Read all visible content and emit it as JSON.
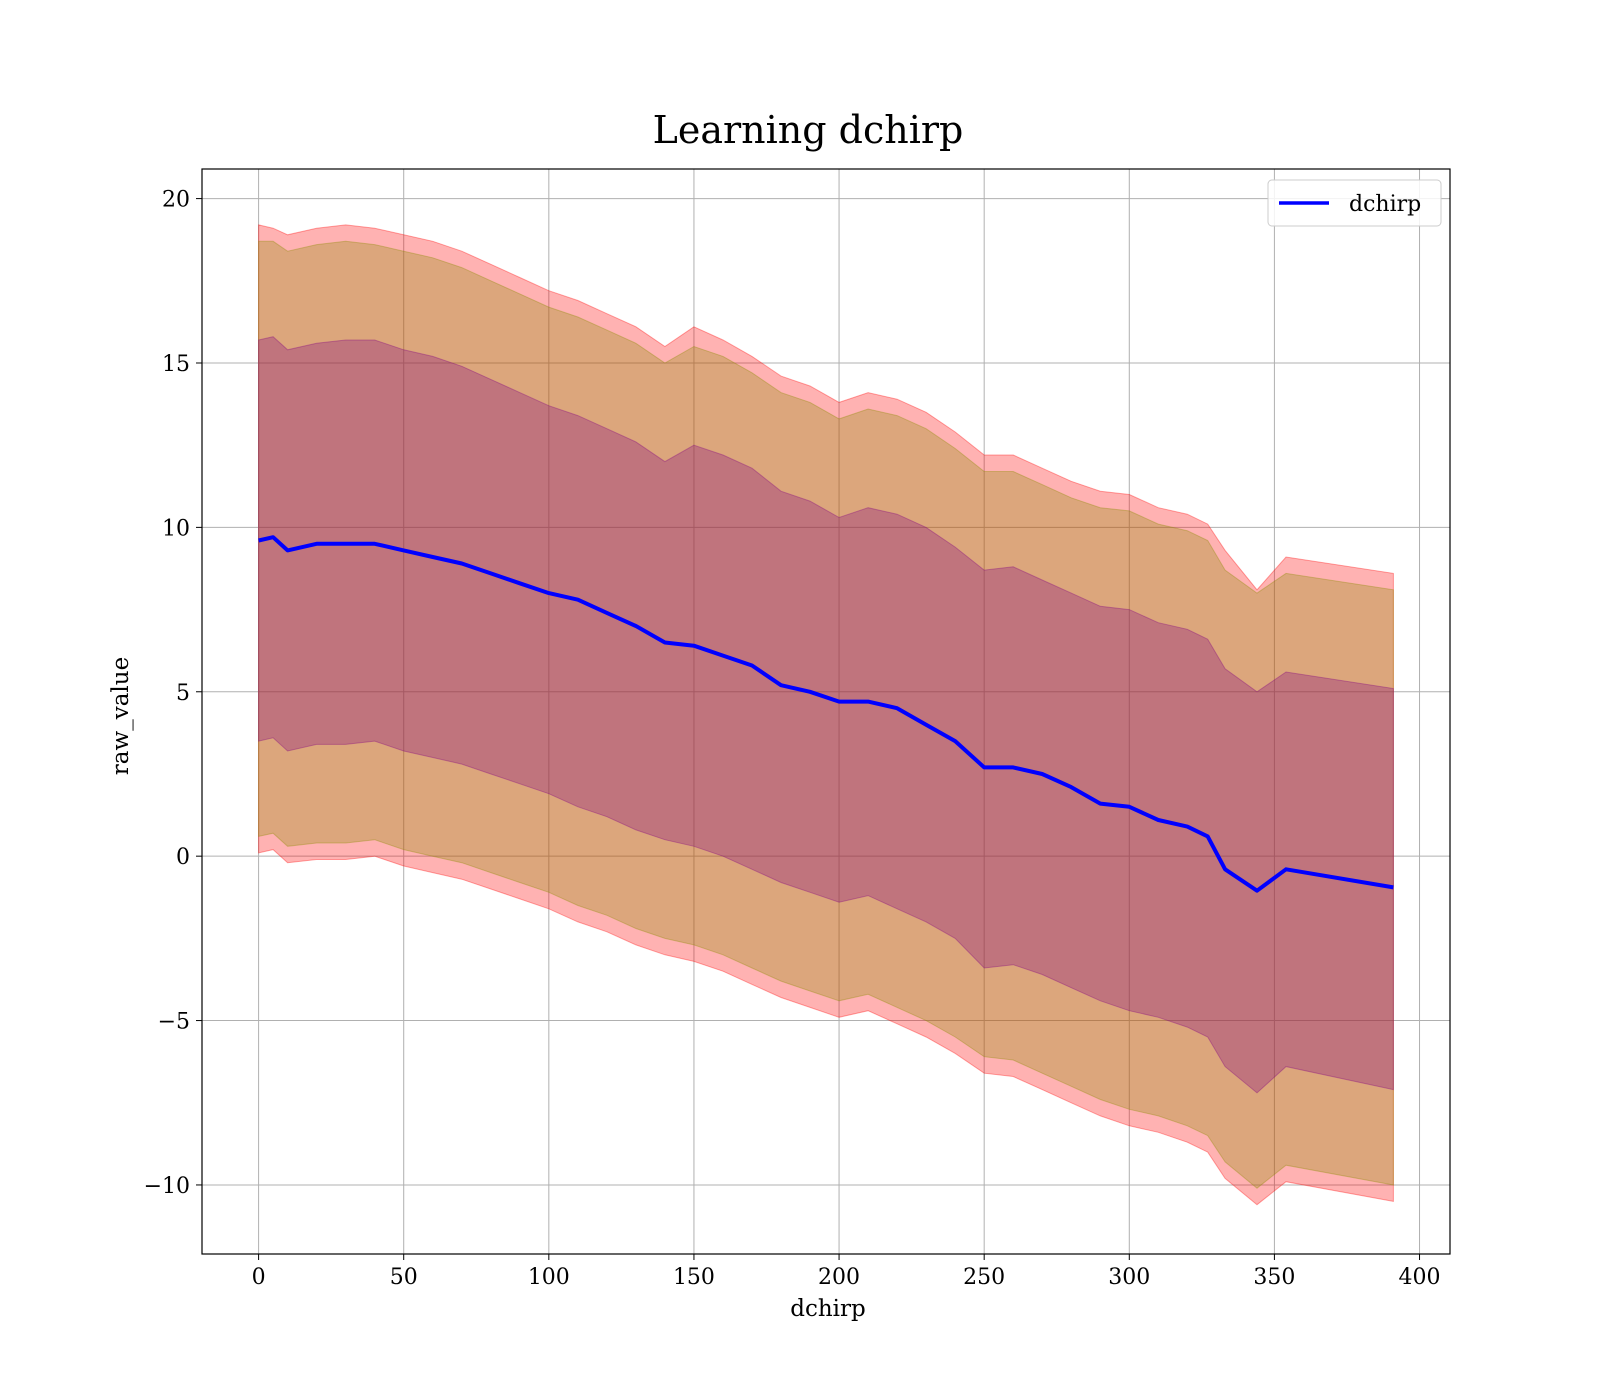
{
  "chart_data": {
    "type": "line",
    "title": "Learning dchirp",
    "xlabel": "dchirp",
    "ylabel": "raw_value",
    "xlim": [
      -19.5,
      410.5
    ],
    "ylim": [
      -12.1,
      20.9
    ],
    "x_ticks": [
      0,
      50,
      100,
      150,
      200,
      250,
      300,
      350,
      400
    ],
    "y_ticks": [
      -10,
      -5,
      0,
      5,
      10,
      15,
      20
    ],
    "x_tick_labels": [
      "0",
      "50",
      "100",
      "150",
      "200",
      "250",
      "300",
      "350",
      "400"
    ],
    "y_tick_labels": [
      "−10",
      "−5",
      "0",
      "5",
      "10",
      "15",
      "20"
    ],
    "grid": true,
    "legend": {
      "position": "top-right",
      "entries": [
        "dchirp"
      ]
    },
    "series": [
      {
        "name": "dchirp",
        "color": "#0000ff",
        "x": [
          0,
          5,
          10,
          20,
          30,
          40,
          50,
          60,
          70,
          80,
          90,
          100,
          110,
          120,
          130,
          140,
          150,
          160,
          170,
          180,
          190,
          200,
          210,
          220,
          230,
          240,
          250,
          260,
          270,
          280,
          290,
          300,
          310,
          320,
          327,
          333,
          344,
          354,
          391
        ],
        "y": [
          9.6,
          9.7,
          9.3,
          9.5,
          9.5,
          9.5,
          9.3,
          9.1,
          8.9,
          8.6,
          8.3,
          8.0,
          7.8,
          7.4,
          7.0,
          6.5,
          6.4,
          6.1,
          5.8,
          5.2,
          5.0,
          4.7,
          4.7,
          4.5,
          4.0,
          3.5,
          2.7,
          2.7,
          2.5,
          2.1,
          1.6,
          1.5,
          1.1,
          0.9,
          0.6,
          -0.4,
          -1.05,
          -0.4,
          -0.95
        ]
      }
    ],
    "bands": [
      {
        "color": "#ff0000",
        "opacity": 0.3,
        "upper": [
          19.2,
          19.1,
          18.9,
          19.1,
          19.2,
          19.1,
          18.9,
          18.7,
          18.4,
          18.0,
          17.6,
          17.2,
          16.9,
          16.5,
          16.1,
          15.5,
          16.1,
          15.7,
          15.2,
          14.6,
          14.3,
          13.8,
          14.1,
          13.9,
          13.5,
          12.9,
          12.2,
          12.2,
          11.8,
          11.4,
          11.1,
          11.0,
          10.6,
          10.4,
          10.1,
          9.3,
          8.1,
          9.1,
          8.6
        ],
        "lower": [
          0.1,
          0.2,
          -0.2,
          -0.1,
          -0.1,
          0.0,
          -0.3,
          -0.5,
          -0.7,
          -1.0,
          -1.3,
          -1.6,
          -2.0,
          -2.3,
          -2.7,
          -3.0,
          -3.2,
          -3.5,
          -3.9,
          -4.3,
          -4.6,
          -4.9,
          -4.7,
          -5.1,
          -5.5,
          -6.0,
          -6.6,
          -6.7,
          -7.1,
          -7.5,
          -7.9,
          -8.2,
          -8.4,
          -8.7,
          -9.0,
          -9.8,
          -10.6,
          -9.9,
          -10.5
        ]
      },
      {
        "color": "#8b8b00",
        "opacity": 0.3,
        "upper": [
          18.7,
          18.7,
          18.4,
          18.6,
          18.7,
          18.6,
          18.4,
          18.2,
          17.9,
          17.5,
          17.1,
          16.7,
          16.4,
          16.0,
          15.6,
          15.0,
          15.5,
          15.2,
          14.7,
          14.1,
          13.8,
          13.3,
          13.6,
          13.4,
          13.0,
          12.4,
          11.7,
          11.7,
          11.3,
          10.9,
          10.6,
          10.5,
          10.1,
          9.9,
          9.6,
          8.7,
          8.0,
          8.6,
          8.1
        ],
        "lower": [
          0.6,
          0.7,
          0.3,
          0.4,
          0.4,
          0.5,
          0.2,
          0.0,
          -0.2,
          -0.5,
          -0.8,
          -1.1,
          -1.5,
          -1.8,
          -2.2,
          -2.5,
          -2.7,
          -3.0,
          -3.4,
          -3.8,
          -4.1,
          -4.4,
          -4.2,
          -4.6,
          -5.0,
          -5.5,
          -6.1,
          -6.2,
          -6.6,
          -7.0,
          -7.4,
          -7.7,
          -7.9,
          -8.2,
          -8.5,
          -9.3,
          -10.1,
          -9.4,
          -10.0
        ]
      },
      {
        "color": "#800080",
        "opacity": 0.3,
        "upper": [
          15.7,
          15.8,
          15.4,
          15.6,
          15.7,
          15.7,
          15.4,
          15.2,
          14.9,
          14.5,
          14.1,
          13.7,
          13.4,
          13.0,
          12.6,
          12.0,
          12.5,
          12.2,
          11.8,
          11.1,
          10.8,
          10.3,
          10.6,
          10.4,
          10.0,
          9.4,
          8.7,
          8.8,
          8.4,
          8.0,
          7.6,
          7.5,
          7.1,
          6.9,
          6.6,
          5.7,
          5.0,
          5.6,
          5.1
        ],
        "lower": [
          3.5,
          3.6,
          3.2,
          3.4,
          3.4,
          3.5,
          3.2,
          3.0,
          2.8,
          2.5,
          2.2,
          1.9,
          1.5,
          1.2,
          0.8,
          0.5,
          0.3,
          -0.0,
          -0.4,
          -0.8,
          -1.1,
          -1.4,
          -1.2,
          -1.6,
          -2.0,
          -2.5,
          -3.4,
          -3.3,
          -3.6,
          -4.0,
          -4.4,
          -4.7,
          -4.9,
          -5.2,
          -5.5,
          -6.4,
          -7.2,
          -6.4,
          -7.1
        ]
      }
    ]
  }
}
